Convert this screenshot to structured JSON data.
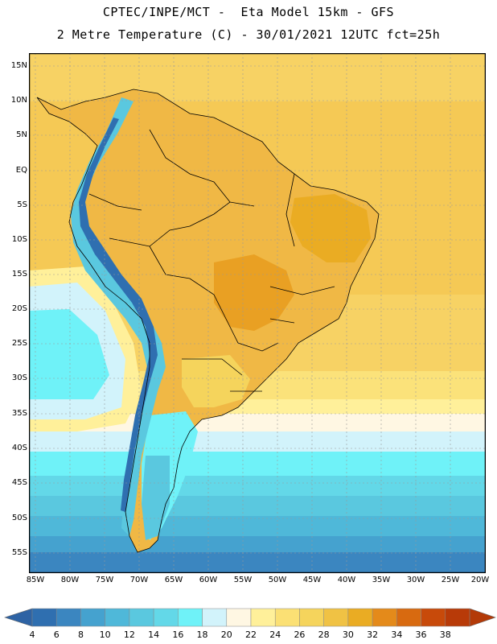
{
  "title": {
    "line1": "CPTEC/INPE/MCT -  Eta Model 15km - GFS",
    "line2": "2 Metre Temperature (C) - 30/01/2021 12UTC fct=25h"
  },
  "axes": {
    "lat_labels": [
      "15N",
      "10N",
      "5N",
      "EQ",
      "5S",
      "10S",
      "15S",
      "20S",
      "25S",
      "30S",
      "35S",
      "40S",
      "45S",
      "50S",
      "55S"
    ],
    "lon_labels": [
      "85W",
      "80W",
      "75W",
      "70W",
      "65W",
      "60W",
      "55W",
      "50W",
      "45W",
      "40W",
      "35W",
      "30W",
      "25W",
      "20W"
    ]
  },
  "colorbar": {
    "labels": [
      "4",
      "6",
      "8",
      "10",
      "12",
      "14",
      "16",
      "18",
      "20",
      "22",
      "24",
      "26",
      "28",
      "30",
      "32",
      "34",
      "36",
      "38"
    ],
    "colors": [
      "#2f6fb0",
      "#3b86c0",
      "#45a2cf",
      "#4fb8d9",
      "#5ac8df",
      "#63d8e8",
      "#6ff2f8",
      "#d2f3fb",
      "#fff7e3",
      "#fff09a",
      "#fbe074",
      "#f5d45c",
      "#f0c244",
      "#eaac23",
      "#e48a1a",
      "#d86a10",
      "#c84a0a",
      "#b83a08"
    ],
    "under_color": "#2e63a4",
    "over_color": "#b33a08"
  },
  "map": {
    "ocean_north_color": "#f7d264",
    "ocean_tropical_color": "#f5c955",
    "land_color": "#f0b845",
    "hot_land_color": "#e9a023",
    "andes_cold_color": "#5ac8df",
    "andes_peak_color": "#2f6fb0",
    "border_color": "#000000",
    "grid_color": "#999999"
  }
}
